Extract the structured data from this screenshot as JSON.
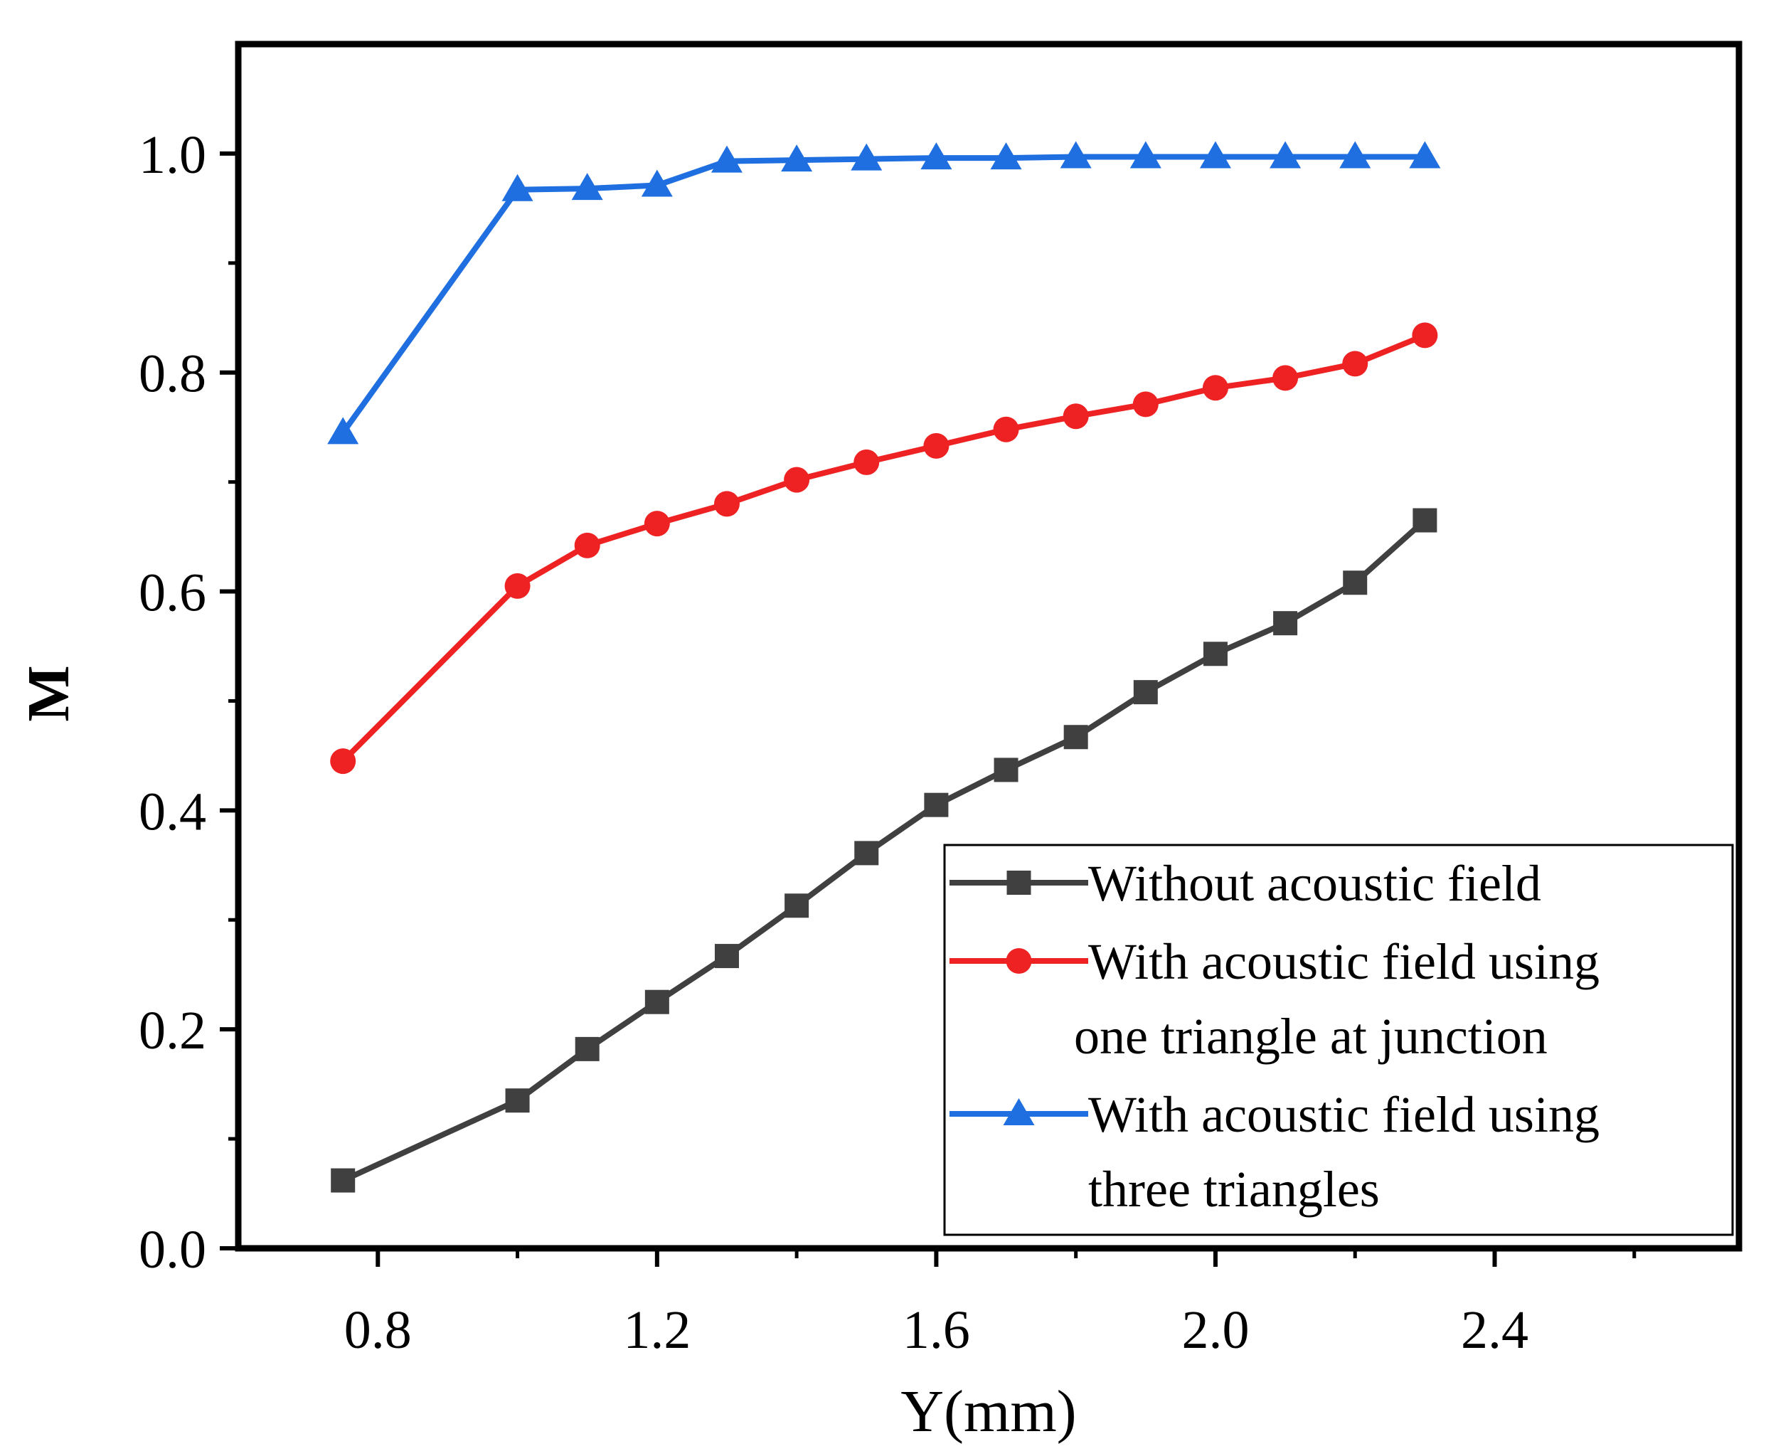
{
  "chart_data": {
    "type": "line",
    "title": "",
    "xlabel": "Y(mm)",
    "ylabel": "M",
    "xlim": [
      0.6,
      2.75
    ],
    "ylim": [
      0.0,
      1.1
    ],
    "x_ticks": [
      0.8,
      1.2,
      1.6,
      2.0,
      2.4
    ],
    "x_tick_labels": [
      "0.8",
      "1.2",
      "1.6",
      "2.0",
      "2.4"
    ],
    "y_ticks": [
      0.0,
      0.2,
      0.4,
      0.6,
      0.8,
      1.0
    ],
    "y_tick_labels": [
      "0.0",
      "0.2",
      "0.4",
      "0.6",
      "0.8",
      "1.0"
    ],
    "grid": false,
    "legend_position": "bottom-right",
    "x": [
      0.75,
      1.0,
      1.1,
      1.2,
      1.3,
      1.4,
      1.5,
      1.6,
      1.7,
      1.8,
      1.9,
      2.0,
      2.1,
      2.2,
      2.3
    ],
    "series": [
      {
        "name": "Without acoustic field",
        "legend_lines": [
          "Without acoustic field"
        ],
        "color": "#404040",
        "marker": "square",
        "values": [
          0.062,
          0.135,
          0.182,
          0.225,
          0.267,
          0.313,
          0.361,
          0.405,
          0.437,
          0.467,
          0.508,
          0.543,
          0.571,
          0.608,
          0.665
        ]
      },
      {
        "name": "With acoustic field using one triangle at junction",
        "legend_lines": [
          "With acoustic field using",
          "one triangle at junction"
        ],
        "color": "#ee2222",
        "marker": "circle",
        "values": [
          0.445,
          0.605,
          0.642,
          0.662,
          0.68,
          0.702,
          0.718,
          0.733,
          0.748,
          0.76,
          0.771,
          0.786,
          0.795,
          0.808,
          0.834
        ]
      },
      {
        "name": "With acoustic field using three triangles",
        "legend_lines": [
          "With acoustic field using",
          "three triangles"
        ],
        "color": "#1f6fe0",
        "marker": "triangle",
        "values": [
          0.745,
          0.967,
          0.968,
          0.971,
          0.993,
          0.994,
          0.995,
          0.996,
          0.996,
          0.997,
          0.997,
          0.997,
          0.997,
          0.997,
          0.997
        ]
      }
    ]
  }
}
